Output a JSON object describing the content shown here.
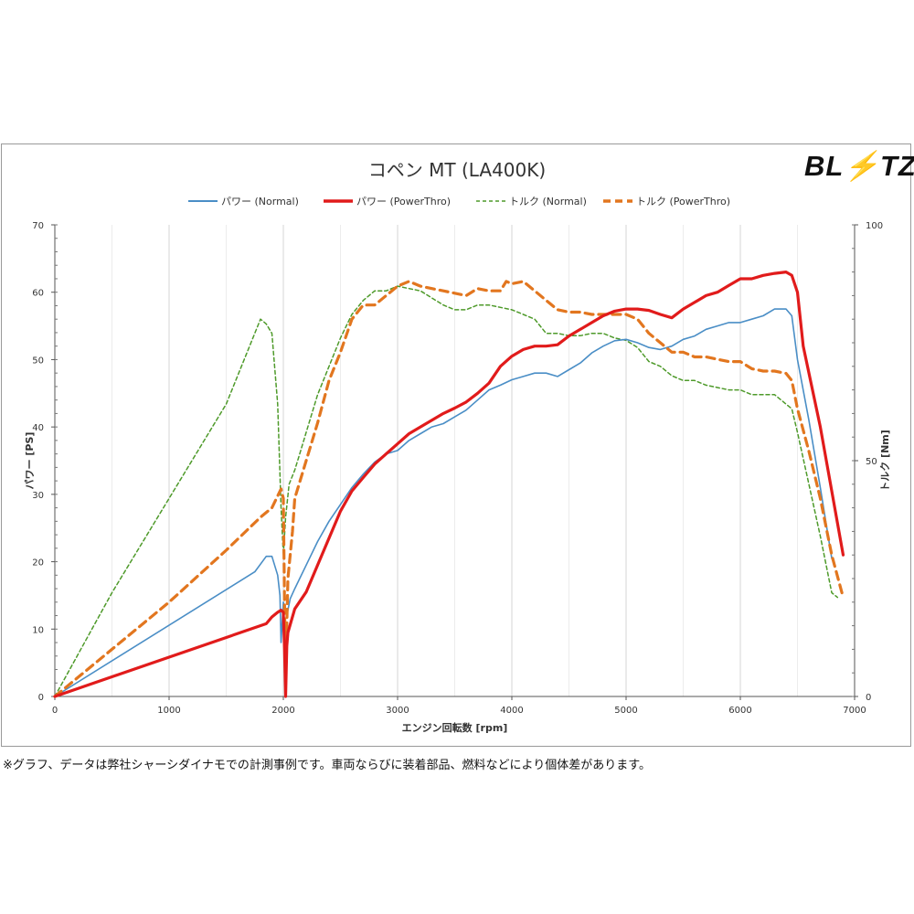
{
  "chart_data": {
    "type": "line",
    "title": "コペン MT (LA400K)",
    "brand_logo": "BLITZ",
    "xlabel": "エンジン回転数 [rpm]",
    "ylabel_left": "パワー [PS]",
    "ylabel_right": "トルク [Nm]",
    "xlim": [
      0,
      7000
    ],
    "ylim_left": [
      0,
      70
    ],
    "ylim_right": [
      0,
      100
    ],
    "x_ticks": [
      "0",
      "1000",
      "2000",
      "3000",
      "4000",
      "5000",
      "6000",
      "7000"
    ],
    "y_left_ticks": [
      "0",
      "10",
      "20",
      "30",
      "40",
      "50",
      "60",
      "70"
    ],
    "y_right_ticks": [
      "0",
      "50",
      "100"
    ],
    "grid": "vertical",
    "legend_position": "top",
    "colors": {
      "power_normal": "#4a8ec6",
      "power_powerthro": "#e11b1b",
      "torque_normal": "#4e9a2a",
      "torque_powerthro": "#e2761f"
    },
    "series": [
      {
        "name": "パワー (Normal)",
        "axis": "left",
        "style": "solid-thin",
        "color": "#4a8ec6",
        "points": [
          [
            0,
            0
          ],
          [
            1750,
            18.5
          ],
          [
            1850,
            20.8
          ],
          [
            1900,
            20.8
          ],
          [
            1950,
            18
          ],
          [
            1970,
            15
          ],
          [
            1980,
            8
          ],
          [
            2000,
            14
          ],
          [
            2030,
            12
          ],
          [
            2060,
            14.5
          ],
          [
            2100,
            16
          ],
          [
            2200,
            19.5
          ],
          [
            2300,
            23
          ],
          [
            2400,
            26
          ],
          [
            2500,
            28.5
          ],
          [
            2600,
            31
          ],
          [
            2700,
            33
          ],
          [
            2800,
            34.8
          ],
          [
            2900,
            36
          ],
          [
            3000,
            36.5
          ],
          [
            3100,
            38
          ],
          [
            3200,
            39
          ],
          [
            3300,
            40
          ],
          [
            3400,
            40.5
          ],
          [
            3500,
            41.5
          ],
          [
            3600,
            42.5
          ],
          [
            3700,
            44
          ],
          [
            3800,
            45.5
          ],
          [
            3900,
            46.2
          ],
          [
            4000,
            47
          ],
          [
            4100,
            47.5
          ],
          [
            4200,
            48
          ],
          [
            4300,
            48
          ],
          [
            4400,
            47.5
          ],
          [
            4500,
            48.5
          ],
          [
            4600,
            49.5
          ],
          [
            4700,
            51
          ],
          [
            4800,
            52
          ],
          [
            4900,
            52.8
          ],
          [
            5000,
            53
          ],
          [
            5100,
            52.5
          ],
          [
            5200,
            51.8
          ],
          [
            5300,
            51.5
          ],
          [
            5400,
            52
          ],
          [
            5500,
            53
          ],
          [
            5600,
            53.5
          ],
          [
            5700,
            54.5
          ],
          [
            5800,
            55
          ],
          [
            5900,
            55.5
          ],
          [
            6000,
            55.5
          ],
          [
            6100,
            56
          ],
          [
            6200,
            56.5
          ],
          [
            6300,
            57.5
          ],
          [
            6400,
            57.5
          ],
          [
            6450,
            56.5
          ],
          [
            6500,
            50
          ],
          [
            6600,
            41
          ],
          [
            6700,
            31
          ],
          [
            6800,
            20.5
          ]
        ]
      },
      {
        "name": "パワー (PowerThro)",
        "axis": "left",
        "style": "solid-thick",
        "color": "#e11b1b",
        "points": [
          [
            0,
            0
          ],
          [
            1850,
            10.8
          ],
          [
            1900,
            11.8
          ],
          [
            1950,
            12.5
          ],
          [
            1980,
            12.8
          ],
          [
            2000,
            12.5
          ],
          [
            2010,
            7
          ],
          [
            2020,
            0
          ],
          [
            2030,
            7.5
          ],
          [
            2040,
            9.5
          ],
          [
            2100,
            13
          ],
          [
            2200,
            15.5
          ],
          [
            2300,
            19.5
          ],
          [
            2400,
            23.5
          ],
          [
            2500,
            27.5
          ],
          [
            2600,
            30.5
          ],
          [
            2700,
            32.5
          ],
          [
            2800,
            34.5
          ],
          [
            2900,
            36
          ],
          [
            3000,
            37.5
          ],
          [
            3100,
            39
          ],
          [
            3200,
            40
          ],
          [
            3300,
            41
          ],
          [
            3400,
            42
          ],
          [
            3500,
            42.8
          ],
          [
            3600,
            43.7
          ],
          [
            3700,
            45
          ],
          [
            3800,
            46.5
          ],
          [
            3900,
            49
          ],
          [
            4000,
            50.5
          ],
          [
            4100,
            51.5
          ],
          [
            4200,
            52
          ],
          [
            4300,
            52
          ],
          [
            4400,
            52.2
          ],
          [
            4500,
            53.5
          ],
          [
            4600,
            54.5
          ],
          [
            4700,
            55.5
          ],
          [
            4800,
            56.5
          ],
          [
            4900,
            57.2
          ],
          [
            5000,
            57.5
          ],
          [
            5100,
            57.5
          ],
          [
            5200,
            57.3
          ],
          [
            5300,
            56.7
          ],
          [
            5400,
            56.2
          ],
          [
            5500,
            57.5
          ],
          [
            5600,
            58.5
          ],
          [
            5700,
            59.5
          ],
          [
            5800,
            60
          ],
          [
            5900,
            61
          ],
          [
            6000,
            62
          ],
          [
            6100,
            62
          ],
          [
            6200,
            62.5
          ],
          [
            6300,
            62.8
          ],
          [
            6400,
            63
          ],
          [
            6450,
            62.5
          ],
          [
            6500,
            60
          ],
          [
            6550,
            52
          ],
          [
            6700,
            40
          ],
          [
            6900,
            21
          ]
        ]
      },
      {
        "name": "トルク (Normal)",
        "axis": "right",
        "style": "dashed-thin",
        "color": "#4e9a2a",
        "points": [
          [
            0,
            0
          ],
          [
            500,
            22
          ],
          [
            1000,
            42
          ],
          [
            1500,
            62
          ],
          [
            1800,
            80
          ],
          [
            1850,
            79
          ],
          [
            1900,
            77
          ],
          [
            1950,
            62
          ],
          [
            1980,
            40
          ],
          [
            2000,
            30
          ],
          [
            2020,
            38
          ],
          [
            2050,
            45
          ],
          [
            2100,
            48
          ],
          [
            2150,
            52
          ],
          [
            2200,
            56
          ],
          [
            2300,
            64
          ],
          [
            2400,
            70
          ],
          [
            2500,
            76
          ],
          [
            2600,
            81
          ],
          [
            2700,
            84
          ],
          [
            2800,
            86
          ],
          [
            2900,
            86
          ],
          [
            3000,
            87
          ],
          [
            3100,
            86.5
          ],
          [
            3200,
            86
          ],
          [
            3300,
            84.5
          ],
          [
            3400,
            83
          ],
          [
            3500,
            82
          ],
          [
            3600,
            82
          ],
          [
            3700,
            83
          ],
          [
            3800,
            83
          ],
          [
            3900,
            82.5
          ],
          [
            4000,
            82
          ],
          [
            4100,
            81
          ],
          [
            4200,
            80
          ],
          [
            4300,
            77
          ],
          [
            4400,
            77
          ],
          [
            4500,
            76.5
          ],
          [
            4600,
            76.5
          ],
          [
            4700,
            77
          ],
          [
            4800,
            77
          ],
          [
            4900,
            76
          ],
          [
            5000,
            75.5
          ],
          [
            5100,
            74
          ],
          [
            5200,
            71
          ],
          [
            5300,
            70
          ],
          [
            5400,
            68
          ],
          [
            5500,
            67
          ],
          [
            5600,
            67
          ],
          [
            5700,
            66
          ],
          [
            5800,
            65.5
          ],
          [
            5900,
            65
          ],
          [
            6000,
            65
          ],
          [
            6100,
            64
          ],
          [
            6200,
            64
          ],
          [
            6300,
            64
          ],
          [
            6400,
            62
          ],
          [
            6450,
            61
          ],
          [
            6500,
            56
          ],
          [
            6600,
            45
          ],
          [
            6700,
            34
          ],
          [
            6800,
            22
          ],
          [
            6850,
            21
          ]
        ]
      },
      {
        "name": "トルク (PowerThro)",
        "axis": "right",
        "style": "dashed-thick",
        "color": "#e2761f",
        "points": [
          [
            0,
            0
          ],
          [
            500,
            10
          ],
          [
            1000,
            20
          ],
          [
            1500,
            31
          ],
          [
            1800,
            38
          ],
          [
            1900,
            40
          ],
          [
            1980,
            44
          ],
          [
            2000,
            42
          ],
          [
            2010,
            20
          ],
          [
            2020,
            5
          ],
          [
            2040,
            25
          ],
          [
            2080,
            35
          ],
          [
            2100,
            42
          ],
          [
            2200,
            50
          ],
          [
            2300,
            58
          ],
          [
            2400,
            67
          ],
          [
            2500,
            73
          ],
          [
            2600,
            80
          ],
          [
            2700,
            83
          ],
          [
            2800,
            83
          ],
          [
            2900,
            85
          ],
          [
            3000,
            87
          ],
          [
            3100,
            88
          ],
          [
            3200,
            87
          ],
          [
            3300,
            86.5
          ],
          [
            3400,
            86
          ],
          [
            3500,
            85.5
          ],
          [
            3600,
            85
          ],
          [
            3700,
            86.5
          ],
          [
            3800,
            86
          ],
          [
            3900,
            86
          ],
          [
            3950,
            88
          ],
          [
            4000,
            87.5
          ],
          [
            4100,
            88
          ],
          [
            4200,
            86
          ],
          [
            4300,
            84
          ],
          [
            4400,
            82
          ],
          [
            4500,
            81.5
          ],
          [
            4600,
            81.5
          ],
          [
            4700,
            81
          ],
          [
            4800,
            81
          ],
          [
            4900,
            81
          ],
          [
            5000,
            81
          ],
          [
            5100,
            80
          ],
          [
            5200,
            77
          ],
          [
            5300,
            75
          ],
          [
            5400,
            73
          ],
          [
            5500,
            73
          ],
          [
            5600,
            72
          ],
          [
            5700,
            72
          ],
          [
            5800,
            71.5
          ],
          [
            5900,
            71
          ],
          [
            6000,
            71
          ],
          [
            6100,
            69.5
          ],
          [
            6200,
            69
          ],
          [
            6300,
            69
          ],
          [
            6400,
            68.5
          ],
          [
            6450,
            67
          ],
          [
            6500,
            61
          ],
          [
            6600,
            52
          ],
          [
            6700,
            42
          ],
          [
            6800,
            30
          ],
          [
            6900,
            21
          ]
        ]
      }
    ],
    "footnote": "※グラフ、データは弊社シャーシダイナモでの計測事例です。車両ならびに装着部品、燃料などにより個体差があります。"
  }
}
